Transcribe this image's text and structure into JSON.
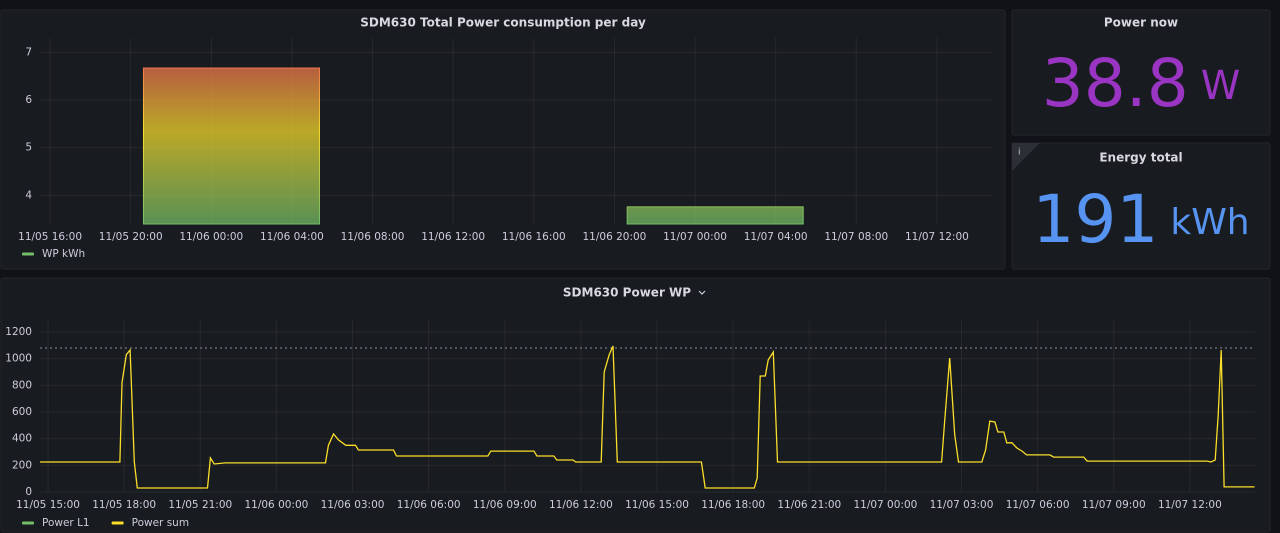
{
  "chart_data": [
    {
      "type": "bar",
      "title": "SDM630 Total Power consumption per day",
      "x": [
        "11/06 01:00",
        "11/07 01:00"
      ],
      "values": [
        6.67,
        3.76
      ],
      "series_name": "WP kWh",
      "color": "#73bf69",
      "gradient": [
        "#73bf69",
        "#fade2a",
        "#f2495c"
      ],
      "xlim": [
        "11/05 15:30",
        "11/07 14:47"
      ],
      "xticks": [
        "11/05 16:00",
        "11/05 20:00",
        "11/06 00:00",
        "11/06 04:00",
        "11/06 08:00",
        "11/06 12:00",
        "11/06 16:00",
        "11/06 20:00",
        "11/07 00:00",
        "11/07 04:00",
        "11/07 08:00",
        "11/07 12:00"
      ],
      "ylim": [
        3.4,
        7.3
      ],
      "yticks": [
        4,
        5,
        6,
        7
      ],
      "grid": true
    },
    {
      "type": "line",
      "title": "SDM630 Power WP",
      "x": [
        "11/05 14:41",
        "11/05 17:50",
        "11/05 17:55",
        "11/05 18:05",
        "11/05 18:14",
        "11/05 18:24",
        "11/05 18:31",
        "11/05 21:17",
        "11/05 21:24",
        "11/05 21:33",
        "11/05 21:59",
        "11/06 01:56",
        "11/06 02:03",
        "11/06 02:15",
        "11/06 02:27",
        "11/06 02:44",
        "11/06 03:07",
        "11/06 03:14",
        "11/06 04:37",
        "11/06 04:44",
        "11/06 08:20",
        "11/06 08:27",
        "11/06 10:09",
        "11/06 10:16",
        "11/06 10:56",
        "11/06 11:03",
        "11/06 11:41",
        "11/06 11:48",
        "11/06 12:48",
        "11/06 12:55",
        "11/06 13:07",
        "11/06 13:16",
        "11/06 13:26",
        "11/06 16:45",
        "11/06 16:54",
        "11/06 18:50",
        "11/06 18:57",
        "11/06 19:04",
        "11/06 19:16",
        "11/06 19:23",
        "11/06 19:35",
        "11/06 19:45",
        "11/07 02:13",
        "11/07 02:20",
        "11/07 02:32",
        "11/07 02:44",
        "11/07 02:53",
        "11/07 03:48",
        "11/07 03:57",
        "11/07 04:07",
        "11/07 04:19",
        "11/07 04:26",
        "11/07 04:40",
        "11/07 04:47",
        "11/07 04:59",
        "11/07 05:11",
        "11/07 05:23",
        "11/07 05:34",
        "11/07 06:29",
        "11/07 06:38",
        "11/07 07:49",
        "11/07 07:57",
        "11/07 12:41",
        "11/07 12:50",
        "11/07 13:00",
        "11/07 13:07",
        "11/07 13:14",
        "11/07 13:21",
        "11/07 14:33"
      ],
      "series": [
        {
          "name": "Power L1",
          "color": "#73bf69",
          "values": [
            null,
            null,
            null,
            null,
            null,
            null,
            null,
            null,
            null,
            null,
            null,
            null,
            null,
            null,
            null,
            null,
            null,
            null,
            null,
            null,
            null,
            null,
            null,
            null,
            null,
            null,
            null,
            null,
            null,
            null,
            null,
            null,
            null,
            null,
            null,
            null,
            null,
            null,
            null,
            null,
            null,
            null,
            null,
            null,
            null,
            null,
            null,
            null,
            null,
            null,
            null,
            null,
            null,
            null,
            null,
            null,
            null,
            null,
            null,
            null,
            null,
            null,
            null,
            null,
            null,
            null,
            null,
            null,
            null
          ]
        },
        {
          "name": "Power sum",
          "color": "#fade2a",
          "values": [
            225,
            225,
            820,
            1030,
            1065,
            225,
            30,
            30,
            255,
            210,
            218,
            218,
            350,
            435,
            390,
            350,
            350,
            315,
            315,
            270,
            270,
            307,
            307,
            270,
            270,
            240,
            240,
            225,
            225,
            900,
            1030,
            1095,
            225,
            225,
            30,
            30,
            105,
            870,
            870,
            990,
            1050,
            225,
            225,
            525,
            1005,
            430,
            225,
            225,
            315,
            532,
            525,
            450,
            450,
            368,
            370,
            330,
            307,
            278,
            278,
            262,
            262,
            232,
            232,
            225,
            240,
            578,
            1065,
            38,
            38
          ]
        }
      ],
      "threshold": 1080,
      "xlim": [
        "11/05 14:41",
        "11/07 14:34"
      ],
      "xticks": [
        "11/05 15:00",
        "11/05 18:00",
        "11/05 21:00",
        "11/06 00:00",
        "11/06 03:00",
        "11/06 06:00",
        "11/06 09:00",
        "11/06 12:00",
        "11/06 15:00",
        "11/06 18:00",
        "11/06 21:00",
        "11/07 00:00",
        "11/07 03:00",
        "11/07 06:00",
        "11/07 09:00",
        "11/07 12:00"
      ],
      "ylim": [
        0,
        1290
      ],
      "yticks": [
        0,
        200,
        400,
        600,
        800,
        1000,
        1200
      ],
      "grid": true
    }
  ],
  "stats": [
    {
      "title": "Power now",
      "value": 38.8,
      "unit": "W",
      "color": "#9a34c2"
    },
    {
      "title": "Energy total",
      "value": 191,
      "unit": "kWh",
      "color": "#5794f2"
    }
  ]
}
